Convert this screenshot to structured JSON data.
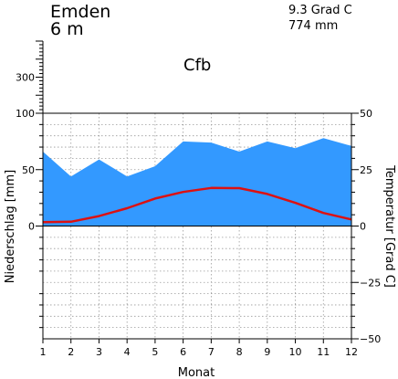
{
  "header": {
    "station": "Emden",
    "elevation": "6  m",
    "mean_temperature": "9.3 Grad C",
    "annual_precipitation": "774 mm",
    "climate_class": "Cfb"
  },
  "colors": {
    "precipitation_fill": "#3399ff",
    "temperature_line": "#dd1111",
    "grid": "#9a9a9a",
    "axis": "#000000"
  },
  "chart_data": {
    "type": "area",
    "x": [
      1,
      2,
      3,
      4,
      5,
      6,
      7,
      8,
      9,
      10,
      11,
      12
    ],
    "x_ticks": [
      "1",
      "2",
      "3",
      "4",
      "5",
      "6",
      "7",
      "8",
      "9",
      "10",
      "11",
      "12"
    ],
    "xlabel": "Monat",
    "ylabel_left": "Niederschlag [mm]",
    "ylabel_right": "Temperatur [Grad C]",
    "left_ticks": [
      "0",
      "50",
      "100",
      "300"
    ],
    "right_ticks": [
      "50",
      "25",
      "0",
      "−25",
      "−50"
    ],
    "ylim_precipitation": [
      -100,
      100
    ],
    "ylim_temperature": [
      -50,
      50
    ],
    "upper_scale_ylim": [
      100,
      500
    ],
    "grid": true,
    "series": [
      {
        "type": "area",
        "axis": "left",
        "values": [
          66,
          44,
          59,
          44,
          53,
          75,
          74,
          66,
          75,
          69,
          78,
          71
        ]
      },
      {
        "type": "line",
        "axis": "right",
        "values": [
          1.7,
          1.9,
          4.4,
          7.9,
          12.2,
          15.1,
          16.9,
          16.8,
          14.2,
          10.3,
          5.8,
          2.9
        ]
      }
    ]
  }
}
